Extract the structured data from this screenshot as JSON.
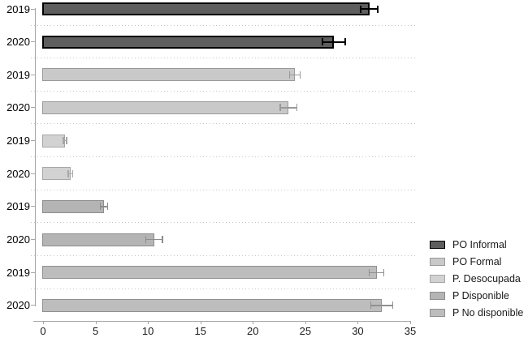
{
  "chart_data": {
    "type": "bar",
    "orientation": "horizontal",
    "title": "",
    "xlabel": "",
    "ylabel": "",
    "xlim": [
      0,
      35
    ],
    "xticks": [
      0,
      5,
      10,
      15,
      20,
      25,
      30,
      35
    ],
    "grid": "dotted-horizontal-separators",
    "legend_position": "right",
    "series": [
      {
        "name": "PO Informal",
        "fill": "#5e5e5e",
        "stroke": "#000000",
        "error_color": "#000000",
        "bars": [
          {
            "label": "2019",
            "value": 31.1,
            "error": 0.8
          },
          {
            "label": "2020",
            "value": 27.7,
            "error": 1.1
          }
        ]
      },
      {
        "name": "PO Formal",
        "fill": "#c9c9c9",
        "stroke": "#999999",
        "error_color": "#999999",
        "bars": [
          {
            "label": "2019",
            "value": 24.0,
            "error": 0.5
          },
          {
            "label": "2020",
            "value": 23.4,
            "error": 0.8
          }
        ]
      },
      {
        "name": "P. Desocupada",
        "fill": "#d2d2d2",
        "stroke": "#a6a6a6",
        "error_color": "#a6a6a6",
        "bars": [
          {
            "label": "2019",
            "value": 2.1,
            "error": 0.16
          },
          {
            "label": "2020",
            "value": 2.6,
            "error": 0.21
          }
        ]
      },
      {
        "name": "P Disponible",
        "fill": "#b4b4b4",
        "stroke": "#8d8d8d",
        "error_color": "#8d8d8d",
        "bars": [
          {
            "label": "2019",
            "value": 5.8,
            "error": 0.36
          },
          {
            "label": "2020",
            "value": 10.6,
            "error": 0.8
          }
        ]
      },
      {
        "name": "P No disponible",
        "fill": "#bdbdbd",
        "stroke": "#909090",
        "error_color": "#909090",
        "bars": [
          {
            "label": "2019",
            "value": 31.8,
            "error": 0.7
          },
          {
            "label": "2020",
            "value": 32.3,
            "error": 1.05
          }
        ]
      }
    ]
  }
}
